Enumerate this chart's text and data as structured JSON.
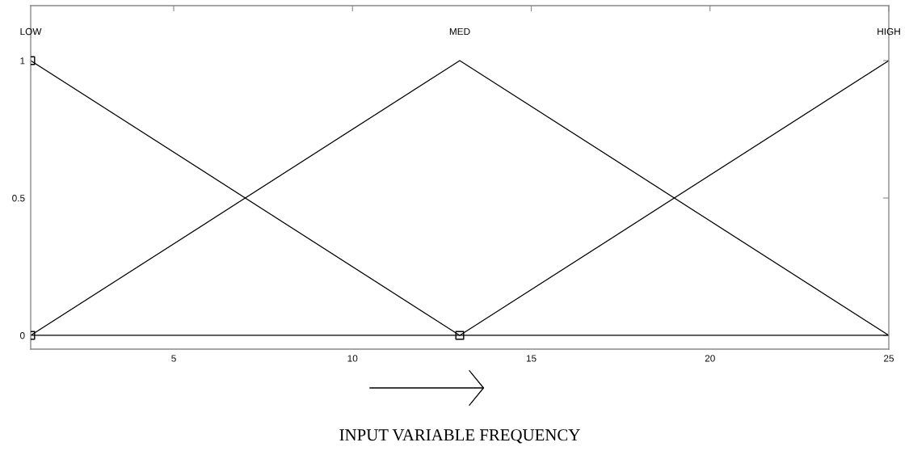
{
  "chart_data": {
    "type": "line",
    "xlabel": "INPUT VARIABLE FREQUENCY",
    "xlim": [
      1,
      25
    ],
    "xticks": [
      5,
      10,
      15,
      20,
      25
    ],
    "ylim": [
      -0.05,
      1.2
    ],
    "yticks": [
      0,
      0.5,
      1
    ],
    "line_style": "solid",
    "annotations": [
      "LOW",
      "MED",
      "HIGH"
    ],
    "series": [
      {
        "color": "#000000",
        "x": [
          1,
          13,
          25
        ],
        "values": [
          1,
          0,
          0
        ]
      },
      {
        "color": "#000000",
        "x": [
          1,
          13,
          25
        ],
        "values": [
          0,
          1,
          0
        ]
      },
      {
        "color": "#000000",
        "x": [
          1,
          13,
          25
        ],
        "values": [
          0,
          0,
          1
        ]
      },
      {
        "type": "scatter",
        "marker": "square",
        "color": "#000000",
        "x": [
          1,
          1,
          13
        ],
        "values": [
          1,
          0,
          0
        ]
      }
    ]
  }
}
